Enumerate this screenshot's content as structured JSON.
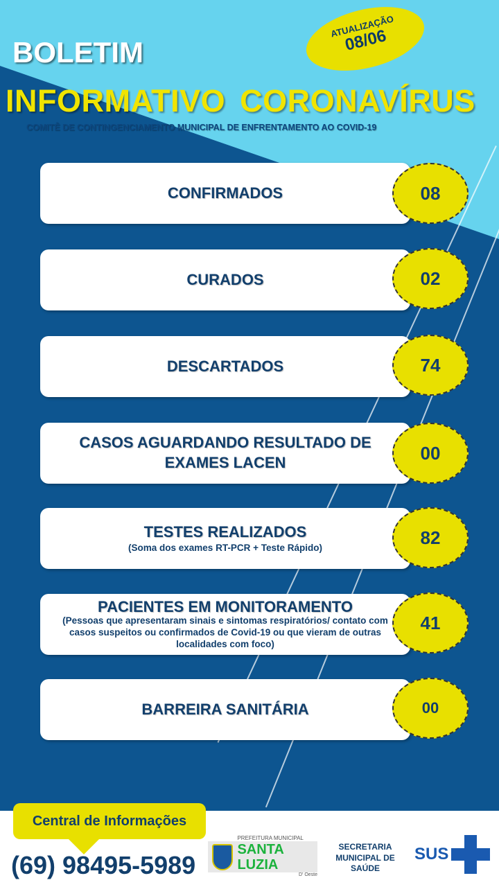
{
  "header": {
    "title_line1": "BOLETIM",
    "title_line2": "INFORMATIVO CORONAVÍRUS",
    "subtitle": "COMITÊ DE CONTINGENCIAMENTO MUNICIPAL DE ENFRENTAMENTO AO COVID-19",
    "update_label": "ATUALIZAÇÃO",
    "update_date": "08/06"
  },
  "colors": {
    "dark_blue": "#0d5590",
    "light_blue": "#66d3ee",
    "yellow": "#e8e000",
    "text_navy": "#123f6c"
  },
  "stats": [
    {
      "title": "CONFIRMADOS",
      "note": "",
      "value": "08"
    },
    {
      "title": "CURADOS",
      "note": "",
      "value": "02"
    },
    {
      "title": "DESCARTADOS",
      "note": "",
      "value": "74"
    },
    {
      "title": "CASOS AGUARDANDO RESULTADO DE EXAMES LACEN",
      "note": "",
      "value": "00"
    },
    {
      "title": "TESTES REALIZADOS",
      "note": "(Soma dos exames RT-PCR + Teste Rápido)",
      "value": "82"
    },
    {
      "title": "PACIENTES EM MONITORAMENTO",
      "note": "(Pessoas que apresentaram sinais e sintomas respiratórios/ contato com casos suspeitos ou confirmados de Covid-19 ou que vieram de outras localidades com foco)",
      "value": "41"
    },
    {
      "title": "BARREIRA SANITÁRIA",
      "note": "",
      "value": "00"
    }
  ],
  "footer": {
    "info_label": "Central de Informações",
    "phone": "(69) 98495-5989",
    "logo_top": "PREFEITURA MUNICIPAL",
    "logo_name": "SANTA LUZIA",
    "logo_sub": "D' Oeste",
    "secretaria": "SECRETARIA MUNICIPAL DE SAÚDE",
    "sus": "SUS"
  }
}
